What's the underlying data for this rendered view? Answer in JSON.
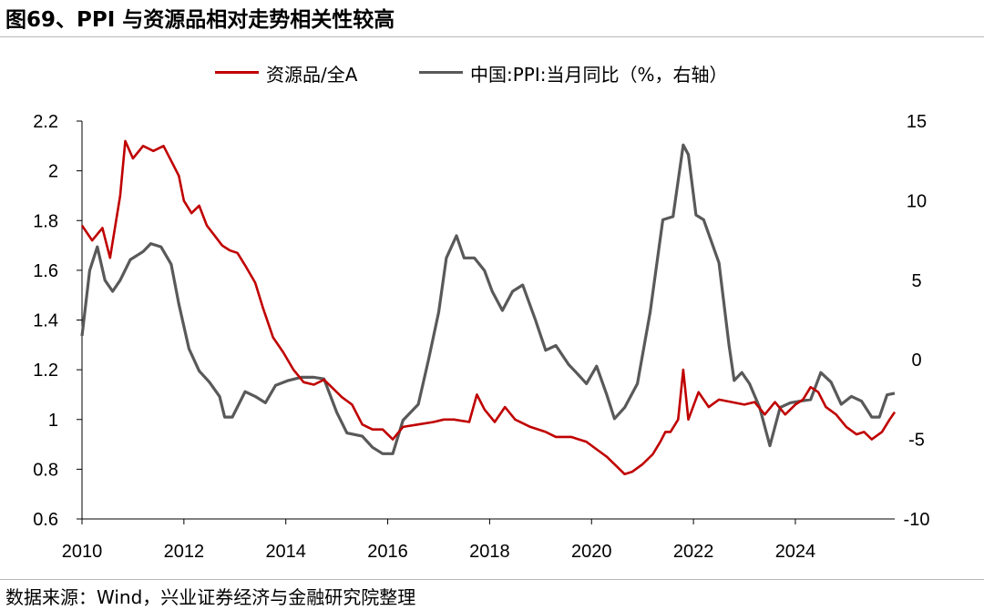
{
  "title": "图69、PPI 与资源品相对走势相关性较高",
  "source": "数据来源：Wind，兴业证券经济与金融研究院整理",
  "colors": {
    "series1": "#c00000",
    "series2": "#595959",
    "axis": "#000000"
  },
  "chart_data": {
    "type": "line",
    "legend_position": "top",
    "grid": false,
    "x_ticks": [
      "2010",
      "2012",
      "2014",
      "2016",
      "2018",
      "2020",
      "2022",
      "2024"
    ],
    "x_range": [
      2010.0,
      2025.95
    ],
    "left_axis": {
      "range": [
        0.6,
        2.2
      ],
      "ticks": [
        "0.6",
        "0.8",
        "1",
        "1.2",
        "1.4",
        "1.6",
        "1.8",
        "2",
        "2.2"
      ]
    },
    "right_axis": {
      "range": [
        -10,
        15
      ],
      "ticks": [
        "-10",
        "-5",
        "0",
        "5",
        "10",
        "15"
      ]
    },
    "series": [
      {
        "name": "资源品/全A",
        "axis": "left",
        "x": [
          2010.0,
          2010.2,
          2010.4,
          2010.55,
          2010.75,
          2010.85,
          2011.0,
          2011.2,
          2011.4,
          2011.6,
          2011.75,
          2011.9,
          2012.0,
          2012.15,
          2012.3,
          2012.45,
          2012.6,
          2012.75,
          2012.9,
          2013.05,
          2013.2,
          2013.4,
          2013.55,
          2013.75,
          2013.95,
          2014.15,
          2014.35,
          2014.55,
          2014.75,
          2014.9,
          2015.1,
          2015.3,
          2015.5,
          2015.7,
          2015.9,
          2016.1,
          2016.3,
          2016.6,
          2016.9,
          2017.1,
          2017.3,
          2017.6,
          2017.75,
          2017.9,
          2018.1,
          2018.3,
          2018.5,
          2018.8,
          2019.1,
          2019.3,
          2019.6,
          2019.9,
          2020.1,
          2020.3,
          2020.5,
          2020.65,
          2020.8,
          2021.0,
          2021.2,
          2021.35,
          2021.45,
          2021.55,
          2021.7,
          2021.8,
          2021.9,
          2022.1,
          2022.3,
          2022.5,
          2022.75,
          2023.0,
          2023.2,
          2023.4,
          2023.6,
          2023.8,
          2024.0,
          2024.15,
          2024.3,
          2024.45,
          2024.6,
          2024.8,
          2025.0,
          2025.2,
          2025.35,
          2025.5,
          2025.7,
          2025.85,
          2025.95
        ],
        "values": [
          1.78,
          1.72,
          1.77,
          1.65,
          1.9,
          2.12,
          2.05,
          2.1,
          2.08,
          2.1,
          2.04,
          1.98,
          1.88,
          1.83,
          1.86,
          1.78,
          1.74,
          1.7,
          1.68,
          1.67,
          1.62,
          1.55,
          1.45,
          1.33,
          1.27,
          1.2,
          1.15,
          1.14,
          1.16,
          1.13,
          1.09,
          1.06,
          0.98,
          0.96,
          0.96,
          0.92,
          0.97,
          0.98,
          0.99,
          1.0,
          1.0,
          0.99,
          1.1,
          1.04,
          0.99,
          1.05,
          1.0,
          0.97,
          0.95,
          0.93,
          0.93,
          0.91,
          0.88,
          0.85,
          0.81,
          0.78,
          0.79,
          0.82,
          0.86,
          0.91,
          0.95,
          0.95,
          1.0,
          1.2,
          1.0,
          1.11,
          1.05,
          1.08,
          1.07,
          1.06,
          1.07,
          1.02,
          1.07,
          1.02,
          1.06,
          1.08,
          1.13,
          1.11,
          1.05,
          1.02,
          0.97,
          0.94,
          0.95,
          0.92,
          0.95,
          1.0,
          1.03
        ]
      },
      {
        "name": "中国:PPI:当月同比（%，右轴）",
        "axis": "right",
        "x": [
          2010.0,
          2010.15,
          2010.3,
          2010.45,
          2010.6,
          2010.75,
          2010.95,
          2011.2,
          2011.35,
          2011.55,
          2011.75,
          2011.9,
          2012.1,
          2012.3,
          2012.5,
          2012.7,
          2012.8,
          2012.95,
          2013.2,
          2013.4,
          2013.6,
          2013.8,
          2014.05,
          2014.3,
          2014.55,
          2014.75,
          2015.0,
          2015.2,
          2015.5,
          2015.7,
          2015.9,
          2016.1,
          2016.3,
          2016.6,
          2016.8,
          2017.0,
          2017.15,
          2017.35,
          2017.5,
          2017.7,
          2017.9,
          2018.05,
          2018.25,
          2018.45,
          2018.65,
          2018.9,
          2019.1,
          2019.3,
          2019.55,
          2019.7,
          2019.9,
          2020.1,
          2020.3,
          2020.45,
          2020.65,
          2020.9,
          2021.15,
          2021.4,
          2021.6,
          2021.8,
          2021.9,
          2022.05,
          2022.2,
          2022.5,
          2022.7,
          2022.8,
          2022.95,
          2023.1,
          2023.3,
          2023.5,
          2023.7,
          2023.9,
          2024.1,
          2024.3,
          2024.5,
          2024.7,
          2024.9,
          2025.1,
          2025.3,
          2025.5,
          2025.65,
          2025.8,
          2025.95
        ],
        "values": [
          1.5,
          5.6,
          7.1,
          5.0,
          4.3,
          5.0,
          6.3,
          6.8,
          7.3,
          7.1,
          6.0,
          3.5,
          0.7,
          -0.7,
          -1.4,
          -2.3,
          -3.6,
          -3.6,
          -2.0,
          -2.3,
          -2.7,
          -1.6,
          -1.3,
          -1.1,
          -1.1,
          -1.2,
          -3.3,
          -4.6,
          -4.8,
          -5.5,
          -5.9,
          -5.9,
          -3.8,
          -2.8,
          0.0,
          3.0,
          6.4,
          7.8,
          6.4,
          6.4,
          5.6,
          4.3,
          3.1,
          4.3,
          4.7,
          2.5,
          0.6,
          0.9,
          -0.3,
          -0.8,
          -1.5,
          -0.4,
          -2.2,
          -3.7,
          -3.0,
          -1.5,
          3.0,
          8.8,
          9.0,
          13.5,
          12.9,
          9.1,
          8.8,
          6.1,
          0.9,
          -1.3,
          -0.8,
          -1.5,
          -3.0,
          -5.4,
          -3.0,
          -2.7,
          -2.6,
          -2.5,
          -0.8,
          -1.4,
          -2.8,
          -2.3,
          -2.6,
          -3.6,
          -3.6,
          -2.2,
          -2.1
        ]
      }
    ]
  }
}
